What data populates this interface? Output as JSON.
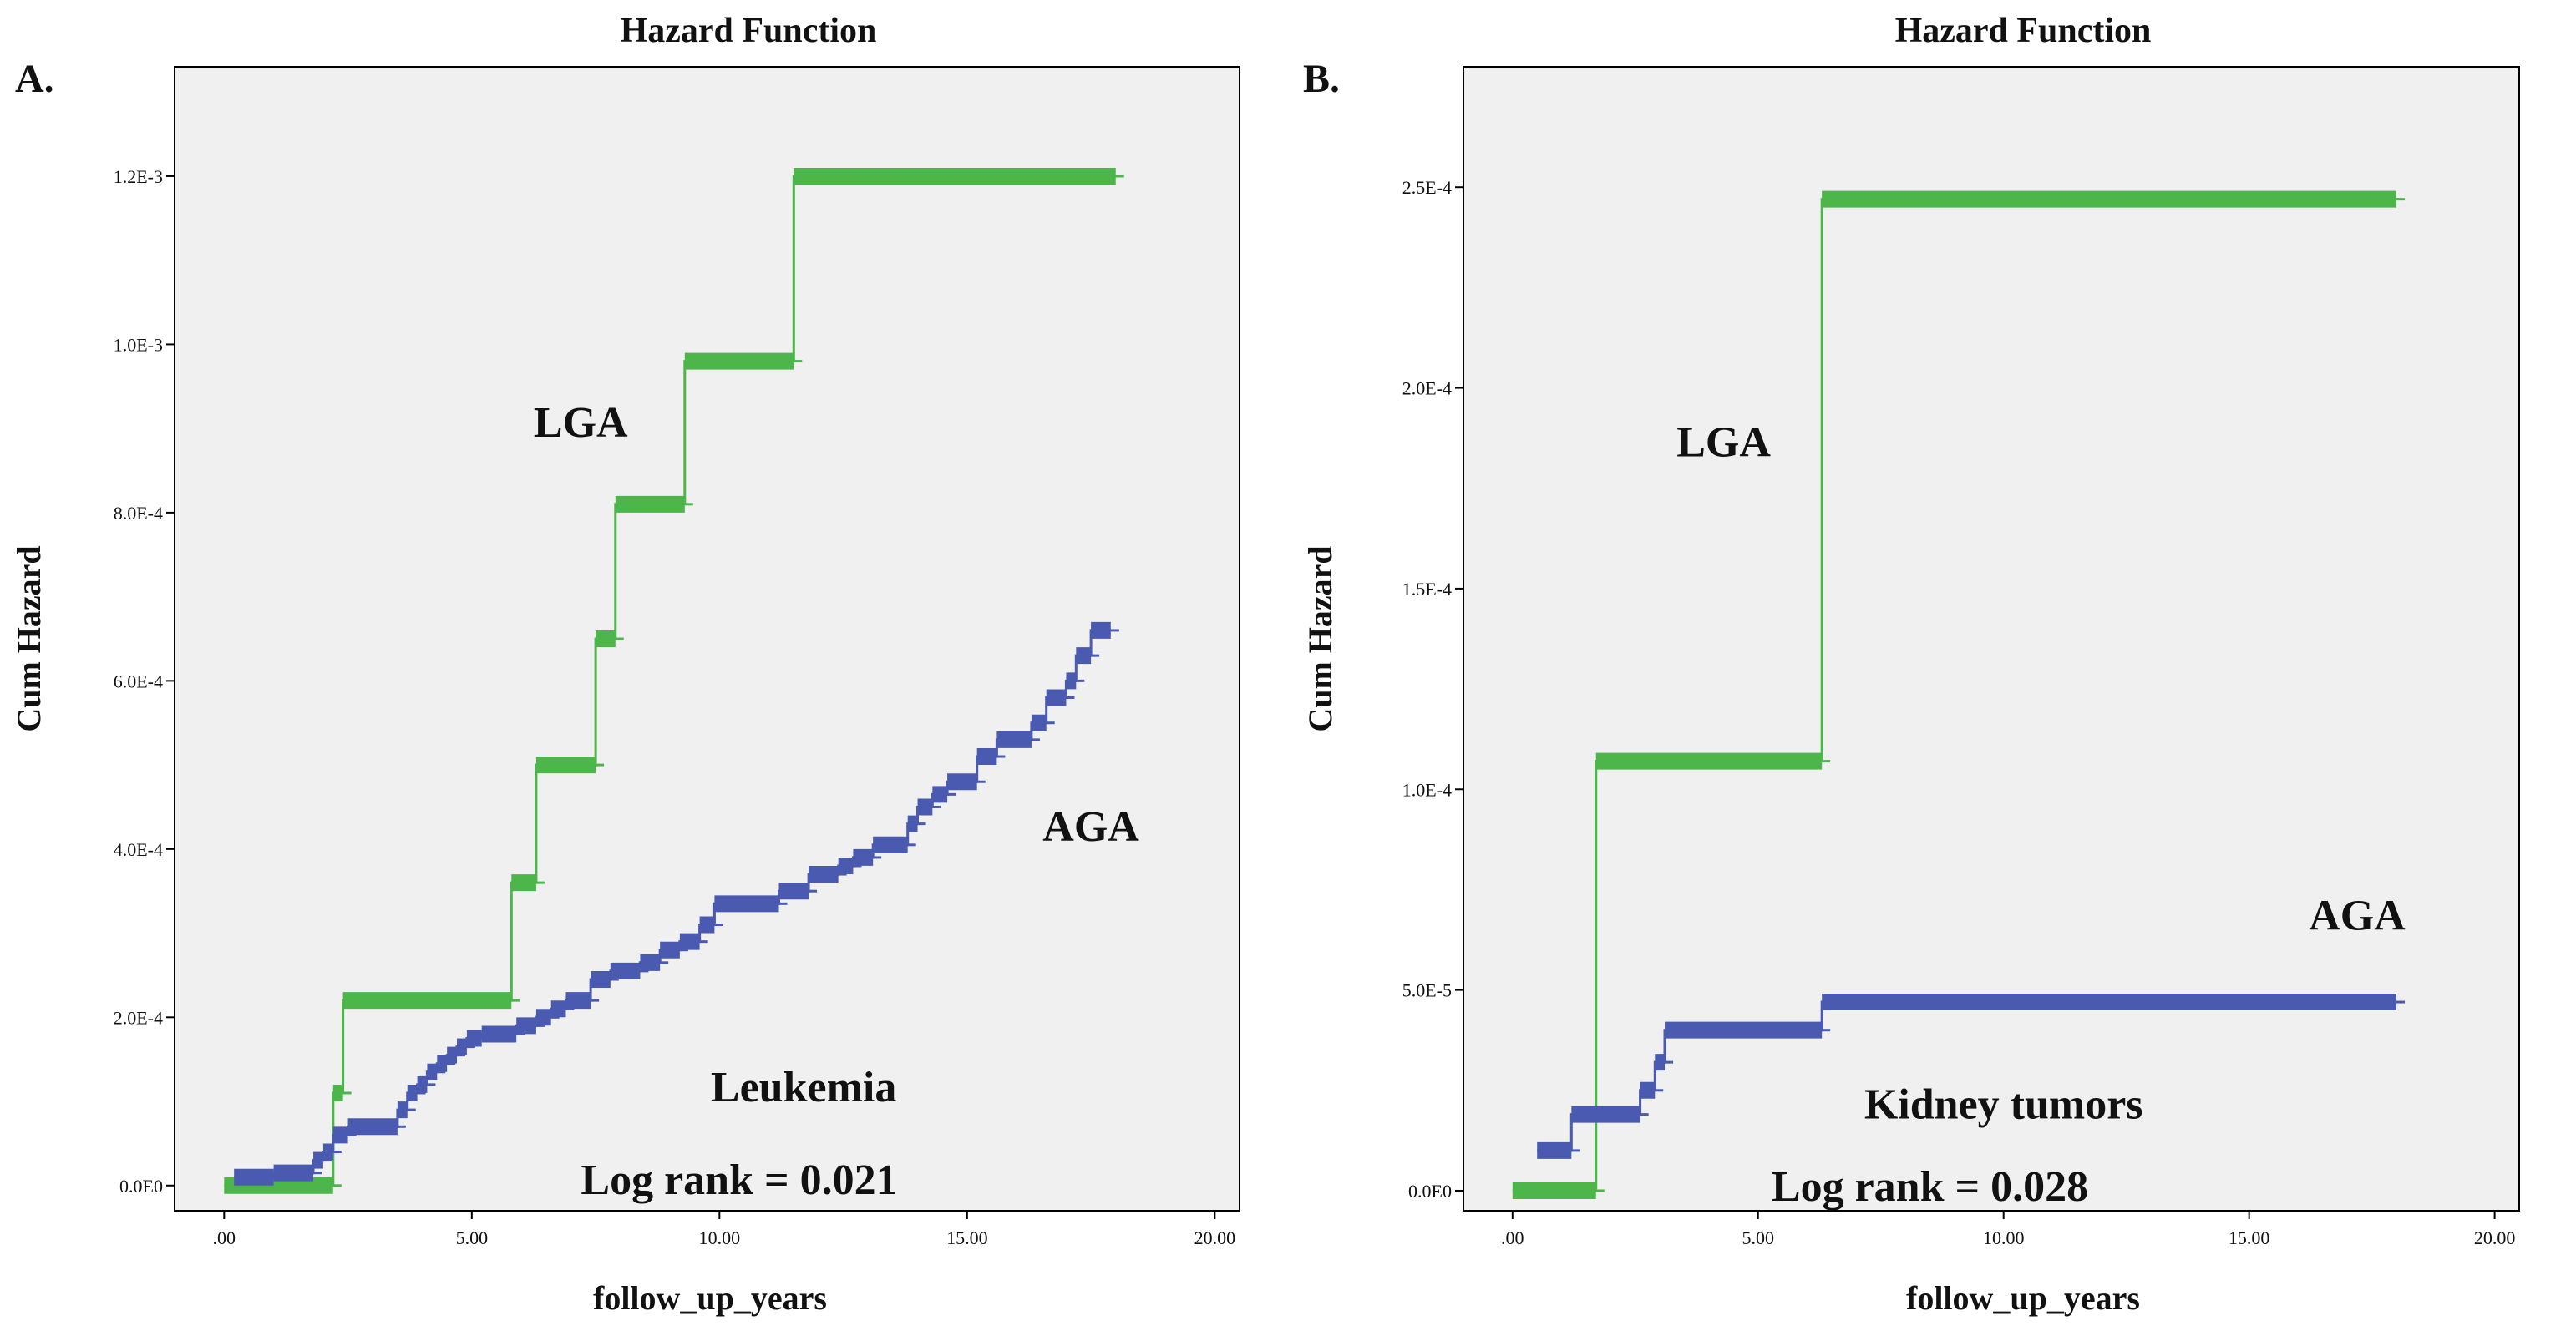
{
  "chart_data": [
    {
      "type": "line",
      "panel_label": "A.",
      "title": "Hazard Function",
      "xlabel": "follow_up_years",
      "ylabel": "Cum Hazard",
      "xlim": [
        -1,
        20.5
      ],
      "ylim": [
        -3e-05,
        0.00133
      ],
      "xticks": [
        0,
        5,
        10,
        15,
        20
      ],
      "xtick_labels": [
        ".00",
        "5.00",
        "10.00",
        "15.00",
        "20.00"
      ],
      "yticks": [
        0,
        0.0002,
        0.0004,
        0.0006,
        0.0008,
        0.001,
        0.0012
      ],
      "ytick_labels": [
        "0.0E0",
        "2.0E-4",
        "4.0E-4",
        "6.0E-4",
        "8.0E-4",
        "1.0E-3",
        "1.2E-3"
      ],
      "background": "#f0f0f0",
      "grid": false,
      "annotations": [
        {
          "text": "LGA",
          "x": 7.2,
          "y": 0.00089
        },
        {
          "text": "AGA",
          "x": 17.5,
          "y": 0.00041
        },
        {
          "text": "Leukemia",
          "x": 11.7,
          "y": 0.0001
        },
        {
          "text": "Log rank = 0.021",
          "x": 10.4,
          "y": -1e-05
        }
      ],
      "series": [
        {
          "color": "#4cb64a",
          "x": [
            0,
            2.2,
            2.2,
            2.4,
            2.4,
            5.8,
            5.8,
            6.3,
            6.3,
            7.5,
            7.5,
            7.9,
            7.9,
            9.3,
            9.3,
            11.5,
            11.5,
            18.0
          ],
          "y": [
            0,
            0,
            0.00011,
            0.00011,
            0.00022,
            0.00022,
            0.00036,
            0.00036,
            0.0005,
            0.0005,
            0.00065,
            0.00065,
            0.00081,
            0.00081,
            0.00098,
            0.00098,
            0.0012,
            0.0012
          ]
        },
        {
          "color": "#4a5ab0",
          "x": [
            0.2,
            1.0,
            1.0,
            1.8,
            1.8,
            2.0,
            2.0,
            2.2,
            2.2,
            2.5,
            2.5,
            3.5,
            3.5,
            3.7,
            3.7,
            3.9,
            3.9,
            4.1,
            4.1,
            4.3,
            4.3,
            4.5,
            4.5,
            4.7,
            4.7,
            4.9,
            4.9,
            5.2,
            5.2,
            5.9,
            5.9,
            6.3,
            6.3,
            6.6,
            6.6,
            6.9,
            6.9,
            7.4,
            7.4,
            7.8,
            7.8,
            8.4,
            8.4,
            8.8,
            8.8,
            9.2,
            9.2,
            9.6,
            9.6,
            9.9,
            9.9,
            11.2,
            11.2,
            11.8,
            11.8,
            12.4,
            12.4,
            12.7,
            12.7,
            13.1,
            13.1,
            13.8,
            13.8,
            14.0,
            14.0,
            14.3,
            14.3,
            14.6,
            14.6,
            15.2,
            15.2,
            15.6,
            15.6,
            16.3,
            16.3,
            16.6,
            16.6,
            17.0,
            17.0,
            17.2,
            17.2,
            17.5,
            17.5,
            17.9
          ],
          "y": [
            1e-05,
            1e-05,
            1.5e-05,
            1.5e-05,
            3e-05,
            3e-05,
            4e-05,
            4e-05,
            6e-05,
            6e-05,
            7e-05,
            7e-05,
            9e-05,
            9e-05,
            0.00011,
            0.00011,
            0.00012,
            0.00012,
            0.000135,
            0.000135,
            0.000145,
            0.000145,
            0.000155,
            0.000155,
            0.000165,
            0.000165,
            0.000175,
            0.000175,
            0.00018,
            0.00018,
            0.00019,
            0.00019,
            0.0002,
            0.0002,
            0.00021,
            0.00021,
            0.00022,
            0.00022,
            0.000245,
            0.000245,
            0.000255,
            0.000255,
            0.000265,
            0.000265,
            0.00028,
            0.00028,
            0.00029,
            0.00029,
            0.00031,
            0.00031,
            0.000335,
            0.000335,
            0.00035,
            0.00035,
            0.00037,
            0.00037,
            0.00038,
            0.00038,
            0.00039,
            0.00039,
            0.000405,
            0.000405,
            0.00043,
            0.00043,
            0.00045,
            0.00045,
            0.000465,
            0.000465,
            0.00048,
            0.00048,
            0.00051,
            0.00051,
            0.00053,
            0.00053,
            0.00055,
            0.00055,
            0.00058,
            0.00058,
            0.0006,
            0.0006,
            0.00063,
            0.00063,
            0.00066,
            0.00066
          ]
        }
      ]
    },
    {
      "type": "line",
      "panel_label": "B.",
      "title": "Hazard Function",
      "xlabel": "follow_up_years",
      "ylabel": "Cum Hazard",
      "xlim": [
        -1,
        20.5
      ],
      "ylim": [
        -5e-06,
        0.00028
      ],
      "xticks": [
        0,
        5,
        10,
        15,
        20
      ],
      "xtick_labels": [
        ".00",
        "5.00",
        "10.00",
        "15.00",
        "20.00"
      ],
      "yticks": [
        0,
        5e-05,
        0.0001,
        0.00015,
        0.0002,
        0.00025
      ],
      "ytick_labels": [
        "0.0E0",
        "5.0E-5",
        "1.0E-4",
        "1.5E-4",
        "2.0E-4",
        "2.5E-4"
      ],
      "background": "#f0f0f0",
      "grid": false,
      "annotations": [
        {
          "text": "LGA",
          "x": 4.3,
          "y": 0.000183
        },
        {
          "text": "AGA",
          "x": 17.2,
          "y": 6.5e-05
        },
        {
          "text": "Kidney tumors",
          "x": 10.0,
          "y": 1.8e-05
        },
        {
          "text": "Log rank = 0.028",
          "x": 8.5,
          "y": -2.5e-06
        }
      ],
      "series": [
        {
          "color": "#4cb64a",
          "x": [
            0,
            1.7,
            1.7,
            6.3,
            6.3,
            18.0
          ],
          "y": [
            0,
            0,
            0.000107,
            0.000107,
            0.000247,
            0.000247
          ]
        },
        {
          "color": "#4a5ab0",
          "x": [
            0.5,
            1.2,
            1.2,
            2.6,
            2.6,
            2.9,
            2.9,
            3.1,
            3.1,
            6.3,
            6.3,
            18.0
          ],
          "y": [
            1e-05,
            1e-05,
            1.9e-05,
            1.9e-05,
            2.5e-05,
            2.5e-05,
            3.2e-05,
            3.2e-05,
            4e-05,
            4e-05,
            4.7e-05,
            4.7e-05
          ]
        }
      ]
    }
  ]
}
